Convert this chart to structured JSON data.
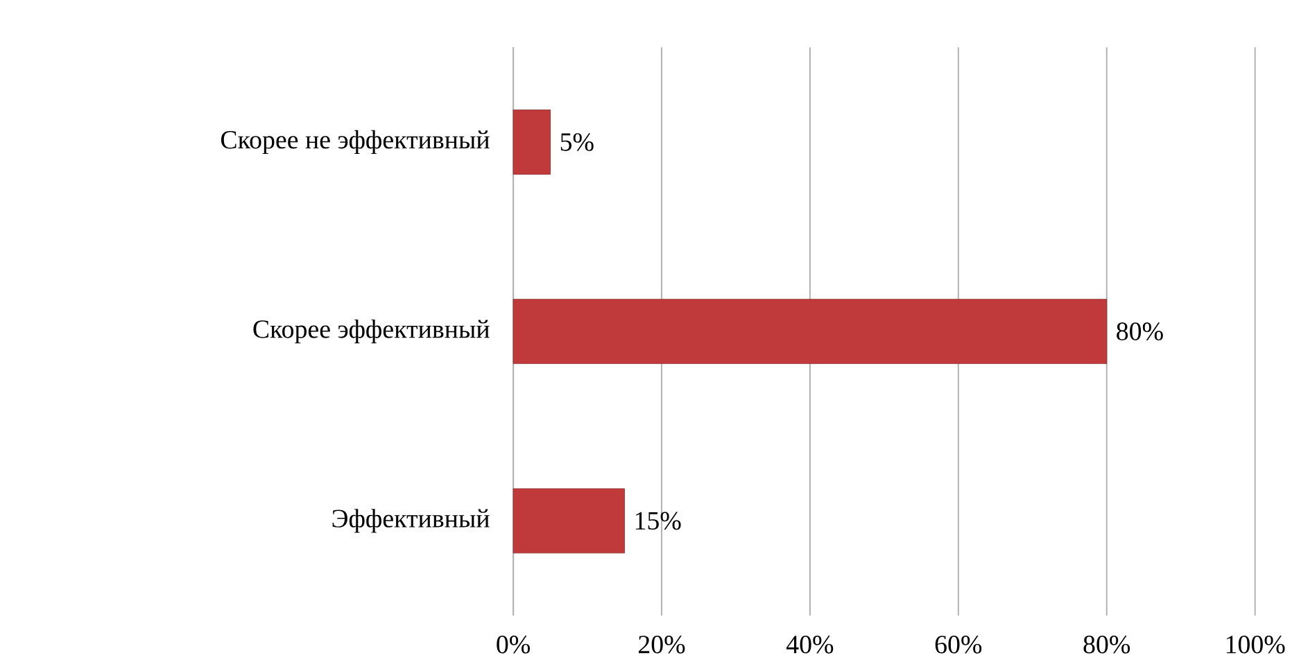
{
  "chart_data": {
    "type": "bar",
    "orientation": "horizontal",
    "categories": [
      "Скорее не эффективный",
      "Скорее эффективный",
      "Эффективный"
    ],
    "values": [
      5,
      80,
      15
    ],
    "value_labels": [
      "5%",
      "80%",
      "15%"
    ],
    "color": "#c0393b",
    "xlim": [
      0,
      100
    ],
    "xticks": [
      {
        "value": 0,
        "label": "0%"
      },
      {
        "value": 20,
        "label": "20%"
      },
      {
        "value": 40,
        "label": "40%"
      },
      {
        "value": 60,
        "label": "60%"
      },
      {
        "value": 80,
        "label": "80%"
      },
      {
        "value": 100,
        "label": "100%"
      }
    ],
    "grid": "x"
  }
}
